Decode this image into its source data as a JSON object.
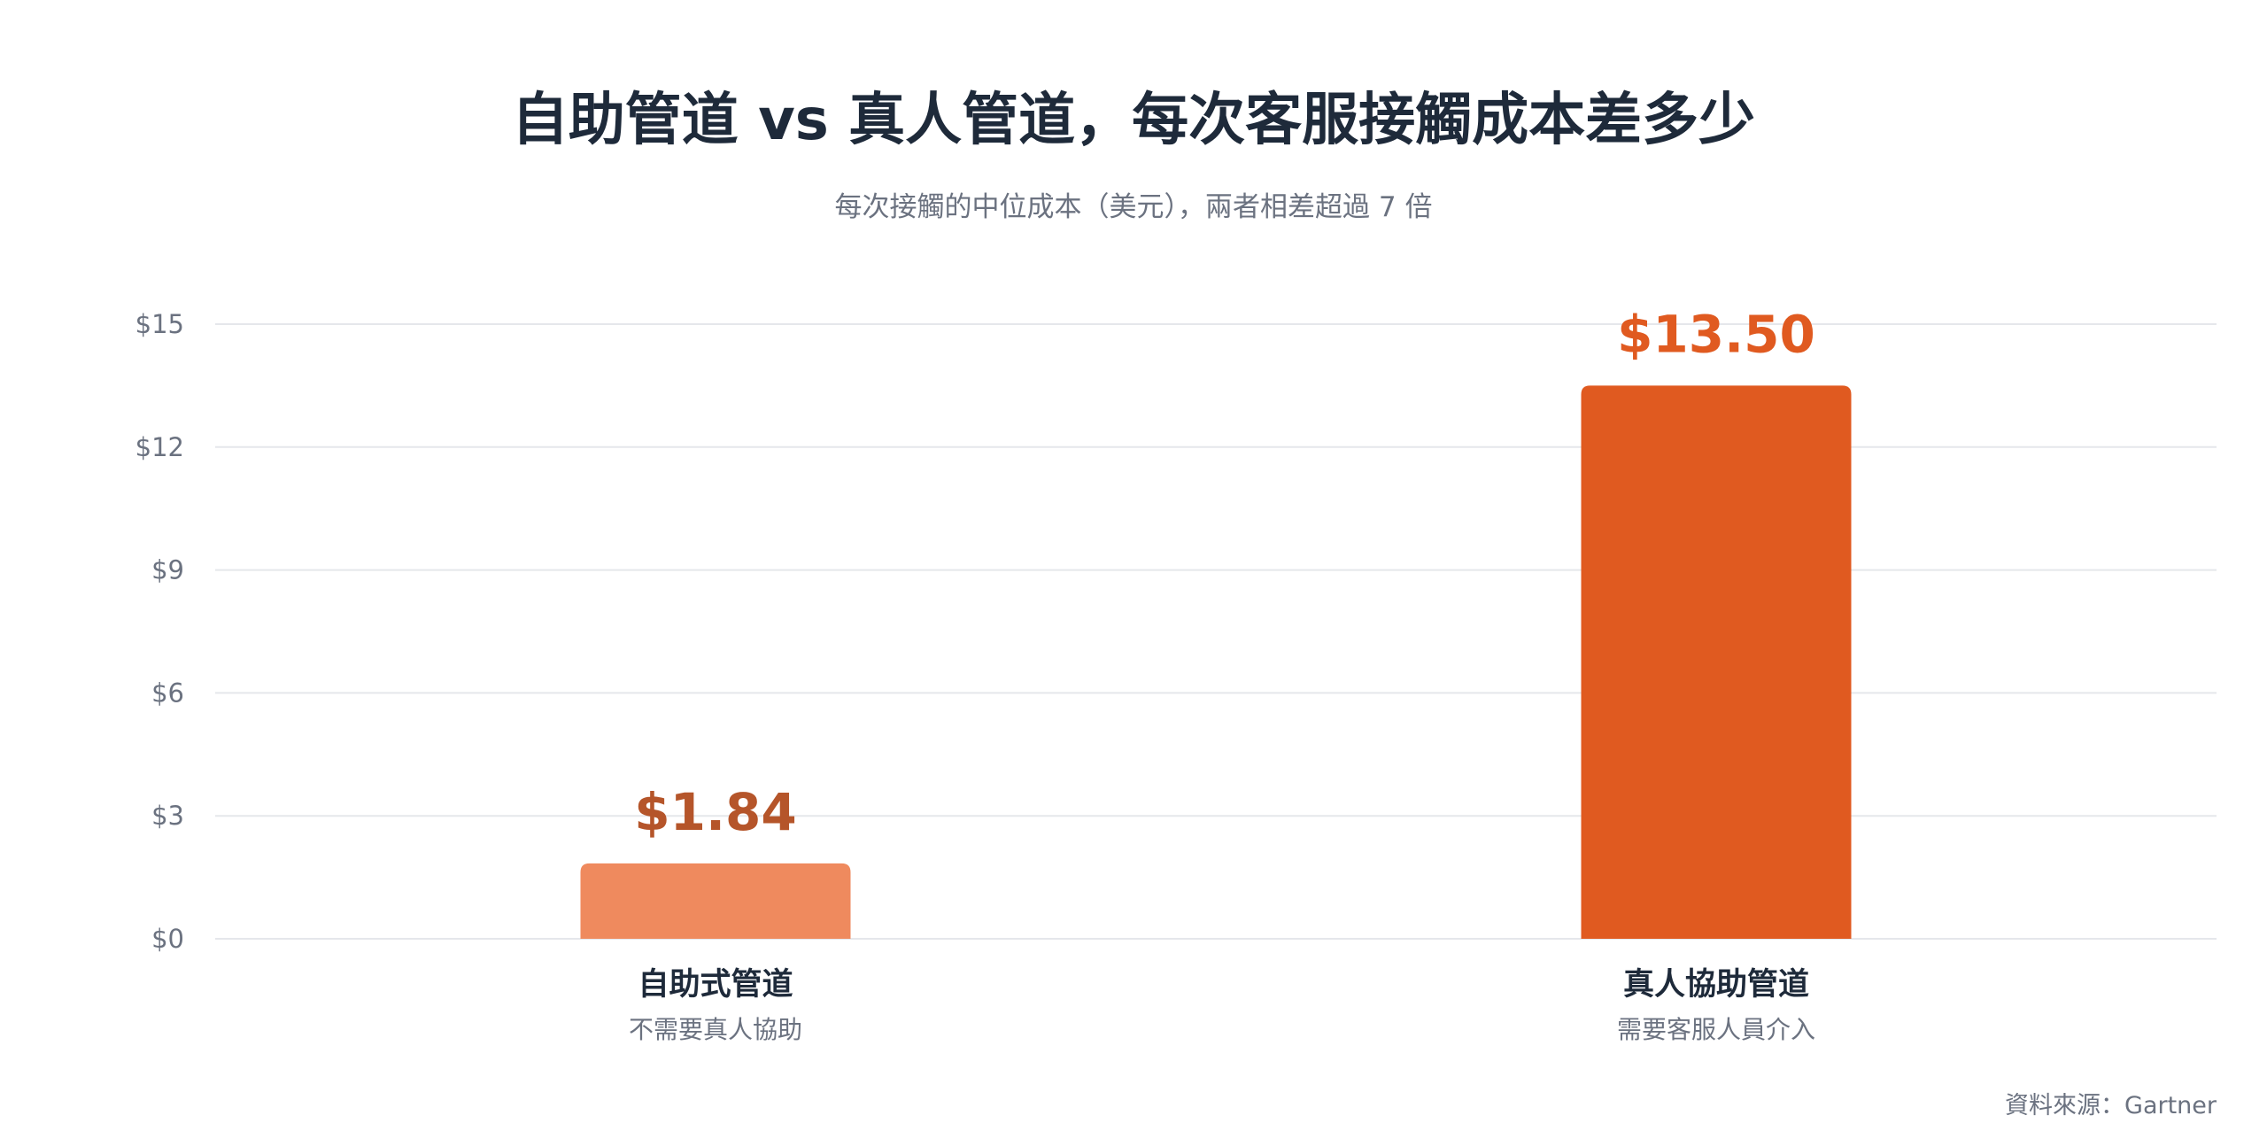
{
  "chart_data": {
    "type": "bar",
    "title": "自助管道 vs 真人管道，每次客服接觸成本差多少",
    "subtitle": "每次接觸的中位成本（美元），兩者相差超過 7 倍",
    "categories": [
      "自助式管道",
      "真人協助管道"
    ],
    "category_sublabels": [
      "不需要真人協助",
      "需要客服人員介入"
    ],
    "values": [
      1.84,
      13.5
    ],
    "value_labels": [
      "$1.84",
      "$13.50"
    ],
    "bar_colors": [
      "#ef8a5e",
      "#e05a20"
    ],
    "value_label_colors": [
      "#b5552a",
      "#e05a20"
    ],
    "ylim": [
      0,
      15
    ],
    "yticks": [
      0,
      3,
      6,
      9,
      12,
      15
    ],
    "ytick_labels": [
      "$0",
      "$3",
      "$6",
      "$9",
      "$12",
      "$15"
    ],
    "xlabel": "",
    "ylabel": "",
    "grid": true,
    "source": "資料來源：Gartner"
  }
}
